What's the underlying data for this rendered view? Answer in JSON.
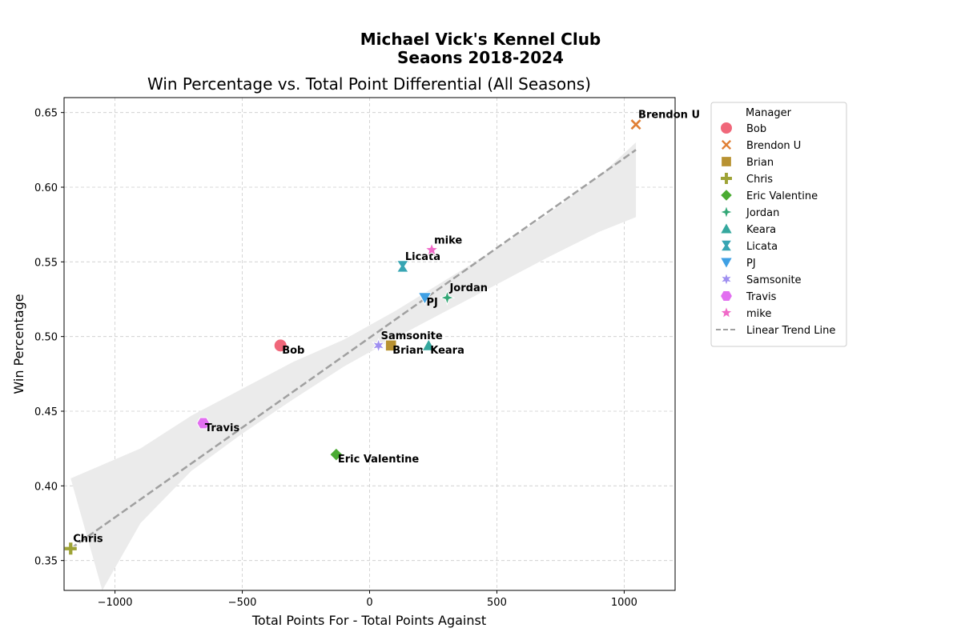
{
  "chart_data": {
    "type": "scatter",
    "suptitle_line1": "Michael Vick's Kennel Club",
    "suptitle_line2": "Seaons 2018-2024",
    "title": "Win Percentage vs. Total Point Differential (All Seasons)",
    "xlabel": "Total Points For - Total Points Against",
    "ylabel": "Win Percentage",
    "xlim": [
      -1200,
      1200
    ],
    "ylim": [
      0.33,
      0.66
    ],
    "xticks": [
      -1000,
      -500,
      0,
      500,
      1000
    ],
    "xtick_labels": [
      "−1000",
      "−500",
      "0",
      "500",
      "1000"
    ],
    "yticks": [
      0.35,
      0.4,
      0.45,
      0.5,
      0.55,
      0.6,
      0.65
    ],
    "ytick_labels": [
      "0.35",
      "0.40",
      "0.45",
      "0.50",
      "0.55",
      "0.60",
      "0.65"
    ],
    "grid": true,
    "legend_title": "Manager",
    "legend_position": "outside-right",
    "series": [
      {
        "name": "Bob",
        "x": -350,
        "y": 0.494,
        "color": "#f0677a",
        "marker": "circle",
        "label_pos": "below-right"
      },
      {
        "name": "Brendon U",
        "x": 1046,
        "y": 0.642,
        "color": "#e07f35",
        "marker": "x",
        "label_pos": "above-right"
      },
      {
        "name": "Brian",
        "x": 84,
        "y": 0.494,
        "color": "#b89232",
        "marker": "square",
        "label_pos": "below-right"
      },
      {
        "name": "Chris",
        "x": -1174,
        "y": 0.358,
        "color": "#9ea336",
        "marker": "plus",
        "label_pos": "above-right"
      },
      {
        "name": "Eric Valentine",
        "x": -131,
        "y": 0.421,
        "color": "#4aab32",
        "marker": "diamond",
        "label_pos": "below-right"
      },
      {
        "name": "Jordan",
        "x": 305,
        "y": 0.526,
        "color": "#33a776",
        "marker": "star4",
        "label_pos": "above-right"
      },
      {
        "name": "Keara",
        "x": 232,
        "y": 0.494,
        "color": "#35a89e",
        "marker": "triangle-up",
        "label_pos": "below-right"
      },
      {
        "name": "Licata",
        "x": 130,
        "y": 0.547,
        "color": "#37a5b3",
        "marker": "hourglass",
        "label_pos": "above-right"
      },
      {
        "name": "PJ",
        "x": 217,
        "y": 0.526,
        "color": "#3fa0e4",
        "marker": "triangle-down",
        "label_pos": "below-right"
      },
      {
        "name": "Samsonite",
        "x": 35,
        "y": 0.494,
        "color": "#9e8ef0",
        "marker": "star6",
        "label_pos": "above-right"
      },
      {
        "name": "Travis",
        "x": -653,
        "y": 0.442,
        "color": "#e26ff0",
        "marker": "hexagon",
        "label_pos": "below-right"
      },
      {
        "name": "mike",
        "x": 244,
        "y": 0.558,
        "color": "#f06ac8",
        "marker": "star5",
        "label_pos": "above-right"
      }
    ],
    "trend_line": {
      "name": "Linear Trend Line",
      "color": "#a0a0a0",
      "x_start": -1174,
      "y_start": 0.358,
      "x_end": 1046,
      "y_end": 0.625
    },
    "confidence_band": {
      "color": "#ebebeb",
      "upper": [
        [
          -1174,
          0.405
        ],
        [
          -900,
          0.425
        ],
        [
          -700,
          0.447
        ],
        [
          -500,
          0.465
        ],
        [
          -300,
          0.483
        ],
        [
          -100,
          0.498
        ],
        [
          100,
          0.517
        ],
        [
          300,
          0.538
        ],
        [
          500,
          0.559
        ],
        [
          700,
          0.582
        ],
        [
          900,
          0.607
        ],
        [
          1046,
          0.63
        ]
      ],
      "lower": [
        [
          1046,
          0.58
        ],
        [
          900,
          0.57
        ],
        [
          700,
          0.553
        ],
        [
          500,
          0.535
        ],
        [
          300,
          0.517
        ],
        [
          100,
          0.499
        ],
        [
          -100,
          0.48
        ],
        [
          -300,
          0.458
        ],
        [
          -500,
          0.435
        ],
        [
          -700,
          0.41
        ],
        [
          -900,
          0.375
        ],
        [
          -1050,
          0.33
        ]
      ]
    }
  }
}
